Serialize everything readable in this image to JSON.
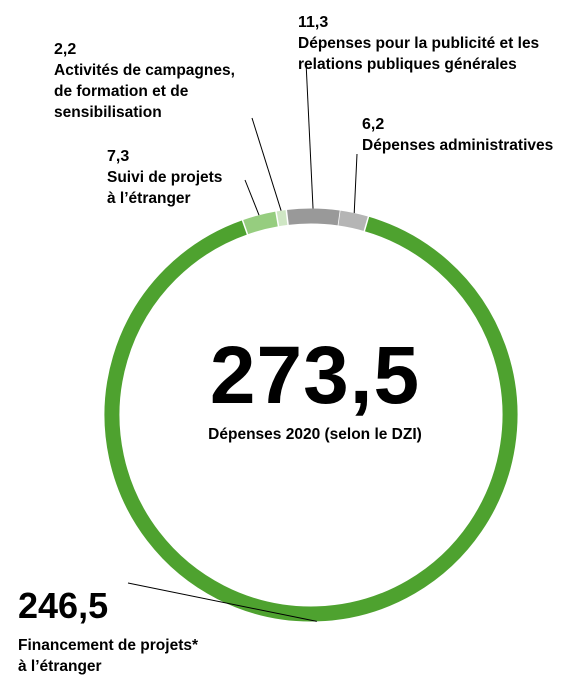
{
  "chart_data": {
    "type": "pie",
    "donut": true,
    "total": {
      "value": "273,5",
      "label": "Dépenses 2020 (selon le DZI)"
    },
    "slices": [
      {
        "id": "dep-admin",
        "value": 6.2,
        "value_label": "6,2",
        "label": "Dépenses administratives",
        "color": "#b5b5b5"
      },
      {
        "id": "financement",
        "value": 246.5,
        "value_label": "246,5",
        "label": "Financement de projets*\nà l’étranger",
        "color": "#4ea22f"
      },
      {
        "id": "suivi",
        "value": 7.3,
        "value_label": "7,3",
        "label": "Suivi de projets\nà l’étranger",
        "color": "#96cd7f"
      },
      {
        "id": "campagnes",
        "value": 2.2,
        "value_label": "2,2",
        "label": "Activités de campagnes,\nde formation et de\nsensibilisation",
        "color": "#cfe6c4"
      },
      {
        "id": "publicite",
        "value": 11.3,
        "value_label": "11,3",
        "label": "Dépenses pour la publicité et les\nrelations publiques générales",
        "color": "#999999"
      }
    ]
  }
}
